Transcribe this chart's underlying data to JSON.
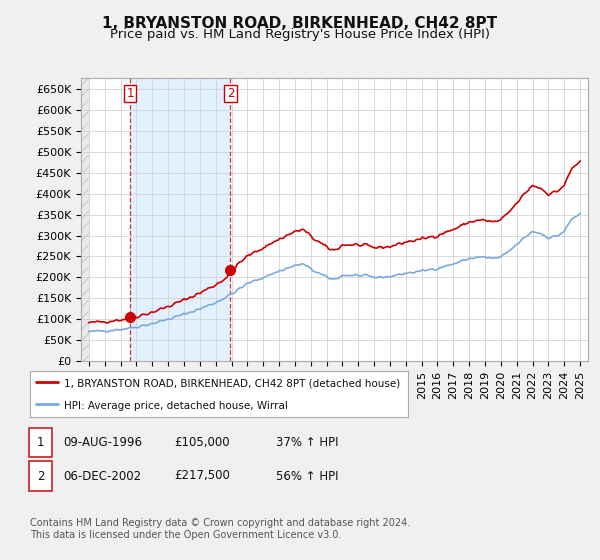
{
  "title": "1, BRYANSTON ROAD, BIRKENHEAD, CH42 8PT",
  "subtitle": "Price paid vs. HM Land Registry's House Price Index (HPI)",
  "ylim": [
    0,
    675000
  ],
  "yticks": [
    0,
    50000,
    100000,
    150000,
    200000,
    250000,
    300000,
    350000,
    400000,
    450000,
    500000,
    550000,
    600000,
    650000
  ],
  "ytick_labels": [
    "£0",
    "£50K",
    "£100K",
    "£150K",
    "£200K",
    "£250K",
    "£300K",
    "£350K",
    "£400K",
    "£450K",
    "£500K",
    "£550K",
    "£600K",
    "£650K"
  ],
  "hpi_color": "#7aaadd",
  "price_color": "#cc0000",
  "background_color": "#f0f0f0",
  "plot_bg_color": "#ffffff",
  "shade_color": "#ddeeff",
  "sale1_year": 1996.6,
  "sale1_price": 105000,
  "sale2_year": 2002.93,
  "sale2_price": 217500,
  "legend_line1": "1, BRYANSTON ROAD, BIRKENHEAD, CH42 8PT (detached house)",
  "legend_line2": "HPI: Average price, detached house, Wirral",
  "table_row1": [
    "1",
    "09-AUG-1996",
    "£105,000",
    "37% ↑ HPI"
  ],
  "table_row2": [
    "2",
    "06-DEC-2002",
    "£217,500",
    "56% ↑ HPI"
  ],
  "footnote": "Contains HM Land Registry data © Crown copyright and database right 2024.\nThis data is licensed under the Open Government Licence v3.0.",
  "title_fontsize": 11,
  "subtitle_fontsize": 9.5,
  "tick_fontsize": 8,
  "xlim_left": 1993.5,
  "xlim_right": 2025.5
}
